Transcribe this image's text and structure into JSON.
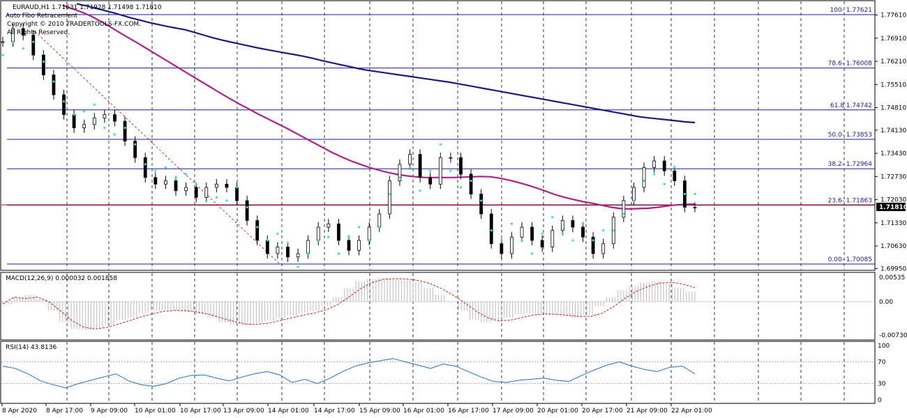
{
  "header": {
    "symbol_line": "EURAUD,H1  1.71631 1.71928 1.71498 1.71810",
    "indicator": "Auto Fibo Retracement",
    "copyright": "Copyright © 2010 TRADERTOOLS-FX.COM.",
    "rights": "All Rights Reserved."
  },
  "current_price": "1.71810",
  "price_axis": [
    "1.77610",
    "1.76910",
    "1.76210",
    "1.75510",
    "1.74810",
    "1.74130",
    "1.73430",
    "1.72730",
    "1.72030",
    "1.71330",
    "1.70630",
    "1.69950"
  ],
  "macd": {
    "title": "MACD(12,26,9) 0.000032 0.001858",
    "axis": [
      "0.00535",
      "0.00",
      "-0.007308"
    ]
  },
  "rsi": {
    "title": "RSI(14) 43.8136",
    "axis": [
      "100",
      "70",
      "30",
      "0"
    ]
  },
  "time_axis": [
    "8 Apr 2020",
    "8 Apr 17:00",
    "9 Apr 09:00",
    "10 Apr 01:00",
    "10 Apr 17:00",
    "13 Apr 09:00",
    "14 Apr 01:00",
    "14 Apr 17:00",
    "15 Apr 09:00",
    "16 Apr 01:00",
    "16 Apr 17:00",
    "17 Apr 09:00",
    "20 Apr 01:00",
    "20 Apr 17:00",
    "21 Apr 09:00",
    "22 Apr 01:00"
  ],
  "chart_data": {
    "type": "line",
    "title": "EURAUD,H1",
    "ylim": [
      1.6995,
      1.78
    ],
    "fibo_levels": [
      {
        "label": "100- 1.77621",
        "value": 1.77621
      },
      {
        "label": "78.6- 1.76008",
        "value": 1.76008
      },
      {
        "label": "61.8 1.74742",
        "value": 1.74742
      },
      {
        "label": "50.0- 1.73853",
        "value": 1.73853
      },
      {
        "label": "38.2- 1.72964",
        "value": 1.72964
      },
      {
        "label": "23.6- 1.71863",
        "value": 1.71863
      },
      {
        "label": "0.00- 1.70085",
        "value": 1.70085
      }
    ],
    "close_series": [
      1.768,
      1.772,
      1.77,
      1.764,
      1.758,
      1.752,
      1.746,
      1.742,
      1.743,
      1.745,
      1.746,
      1.744,
      1.738,
      1.733,
      1.727,
      1.725,
      1.726,
      1.723,
      1.724,
      1.721,
      1.724,
      1.725,
      1.724,
      1.72,
      1.714,
      1.708,
      1.704,
      1.706,
      1.703,
      1.704,
      1.708,
      1.712,
      1.713,
      1.708,
      1.705,
      1.708,
      1.712,
      1.716,
      1.726,
      1.731,
      1.734,
      1.727,
      1.725,
      1.733,
      1.733,
      1.728,
      1.722,
      1.716,
      1.707,
      1.704,
      1.709,
      1.712,
      1.708,
      1.706,
      1.711,
      1.714,
      1.712,
      1.709,
      1.704,
      1.707,
      1.715,
      1.72,
      1.724,
      1.73,
      1.732,
      1.729,
      1.726,
      1.718,
      1.718
    ],
    "ma_long_series": [
      1.7795,
      1.7789,
      1.7782,
      1.7775,
      1.7768,
      1.776,
      1.7752,
      1.7745,
      1.7738,
      1.7732,
      1.7726,
      1.7721,
      1.7716,
      1.7708,
      1.77,
      1.7692,
      1.7685,
      1.7679,
      1.7673,
      1.7667,
      1.7661,
      1.7656,
      1.7651,
      1.7646,
      1.7641,
      1.7636,
      1.763,
      1.7623,
      1.7617,
      1.7611,
      1.7605,
      1.7599,
      1.7594,
      1.759,
      1.7586,
      1.7582,
      1.7578,
      1.7574,
      1.757,
      1.7566,
      1.7562,
      1.7558,
      1.7553,
      1.7548,
      1.7543,
      1.7538,
      1.7533,
      1.7528,
      1.7523,
      1.7518,
      1.7513,
      1.7508,
      1.7503,
      1.7498,
      1.7493,
      1.7488,
      1.7483,
      1.7478,
      1.7473,
      1.7468,
      1.7463,
      1.7458,
      1.7453,
      1.745,
      1.7447,
      1.7444,
      1.7441,
      1.7438,
      1.7436
    ],
    "ma_short_series": [
      1.779,
      1.778,
      1.777,
      1.7758,
      1.7743,
      1.7727,
      1.771,
      1.7693,
      1.7677,
      1.766,
      1.7643,
      1.7626,
      1.7609,
      1.7592,
      1.7575,
      1.7558,
      1.7541,
      1.7524,
      1.7508,
      1.7492,
      1.7477,
      1.7462,
      1.7448,
      1.7434,
      1.742,
      1.7405,
      1.739,
      1.7375,
      1.736,
      1.7345,
      1.7332,
      1.732,
      1.731,
      1.73,
      1.7292,
      1.7285,
      1.7279,
      1.7275,
      1.7272,
      1.727,
      1.727,
      1.727,
      1.727,
      1.7271,
      1.7272,
      1.7273,
      1.7272,
      1.7268,
      1.7262,
      1.7255,
      1.7247,
      1.7238,
      1.7228,
      1.7218,
      1.721,
      1.7203,
      1.7197,
      1.7192,
      1.7186,
      1.718,
      1.7176,
      1.7175,
      1.7176,
      1.7177,
      1.718,
      1.7184,
      1.7187,
      1.7189,
      1.719
    ],
    "macd_series": [
      -0.0005,
      0.001,
      0.0015,
      0.0005,
      -0.002,
      -0.0045,
      -0.006,
      -0.0062,
      -0.0058,
      -0.005,
      -0.004,
      -0.0035,
      -0.0025,
      -0.002,
      -0.0018,
      -0.002,
      -0.0022,
      -0.0028,
      -0.0035,
      -0.0045,
      -0.005,
      -0.0052,
      -0.0048,
      -0.0042,
      -0.0035,
      -0.003,
      -0.0025,
      -0.002,
      -0.001,
      0.001,
      0.003,
      0.0045,
      0.005,
      0.0052,
      0.005,
      0.0048,
      0.0042,
      0.003,
      0.0015,
      0.0,
      -0.002,
      -0.004,
      -0.0045,
      -0.0042,
      -0.0035,
      -0.0028,
      -0.0025,
      -0.0028,
      -0.003,
      -0.0032,
      -0.0035,
      -0.003,
      -0.001,
      0.001,
      0.0025,
      0.0035,
      0.0042,
      0.0045,
      0.004,
      0.003,
      0.0022
    ],
    "rsi_series": [
      62,
      58,
      48,
      35,
      28,
      22,
      30,
      36,
      42,
      48,
      35,
      28,
      25,
      30,
      40,
      45,
      46,
      40,
      35,
      42,
      48,
      52,
      46,
      32,
      38,
      30,
      40,
      52,
      62,
      68,
      72,
      76,
      70,
      64,
      58,
      66,
      62,
      52,
      42,
      34,
      32,
      36,
      38,
      40,
      36,
      34,
      45,
      55,
      64,
      70,
      62,
      56,
      52,
      60,
      62,
      48
    ]
  }
}
